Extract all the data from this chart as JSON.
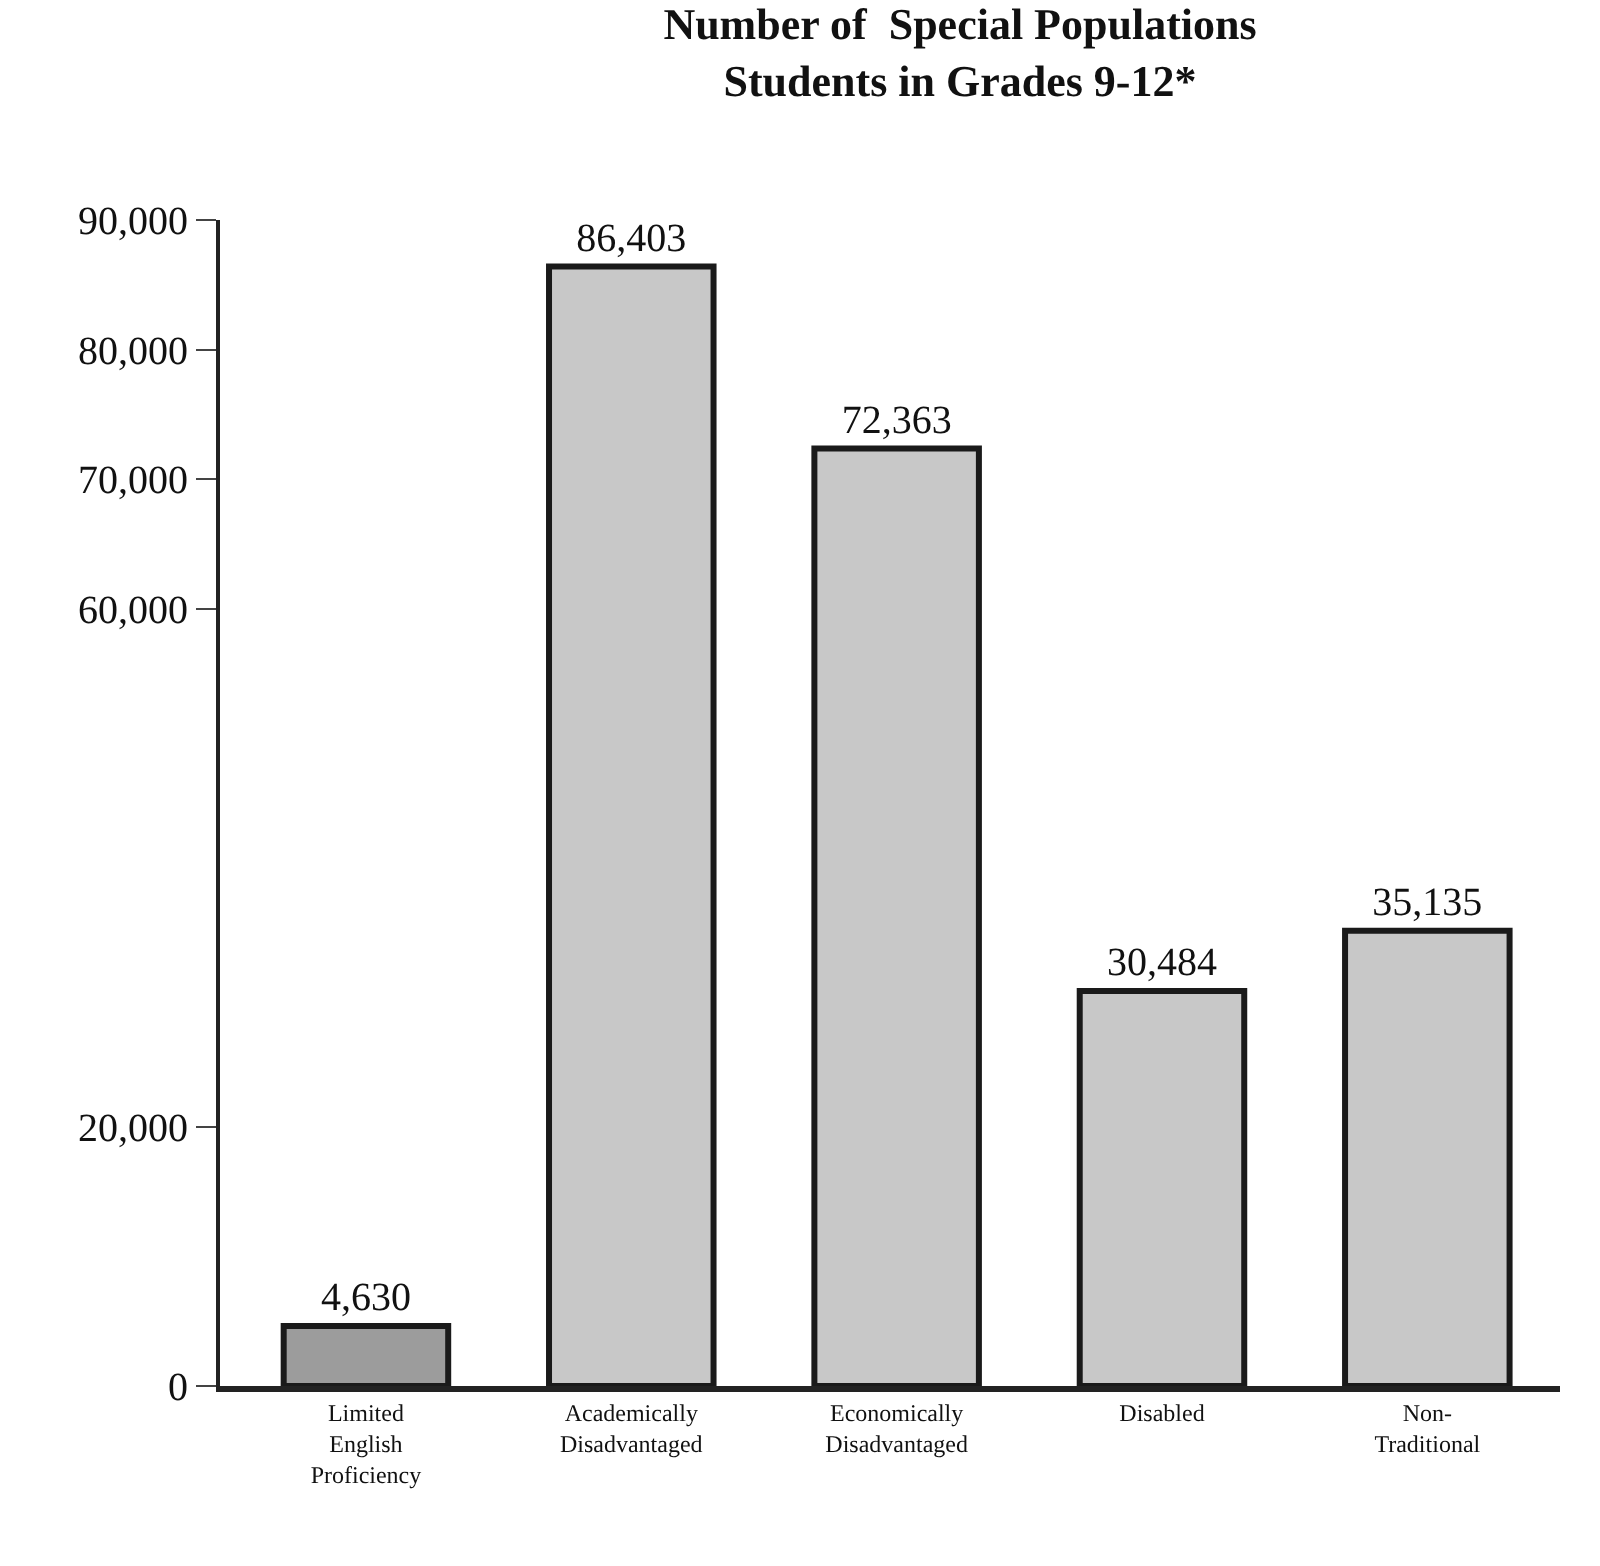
{
  "chart_data": {
    "type": "bar",
    "title": "Number of  Special Populations\nStudents in Grades 9-12*",
    "categories": [
      "Limited\nEnglish\nProficiency",
      "Academically\nDisadvantaged",
      "Economically\nDisadvantaged",
      "Disabled",
      "Non-\nTraditional"
    ],
    "values": [
      4630,
      86403,
      72363,
      30484,
      35135
    ],
    "colors": [
      "#9c9c9c",
      "#c8c8c8",
      "#c8c8c8",
      "#c8c8c8",
      "#c8c8c8"
    ],
    "ylim": [
      0,
      90000
    ],
    "yticks": [
      {
        "value": 0,
        "label": "0"
      },
      {
        "value": 20000,
        "label": "20,000"
      },
      {
        "value": 60000,
        "label": "60,000"
      },
      {
        "value": 70000,
        "label": "70,000"
      },
      {
        "value": 80000,
        "label": "80,000"
      },
      {
        "value": 90000,
        "label": "90,000"
      }
    ],
    "value_labels": [
      "4,630",
      "86,403",
      "72,363",
      "30,484",
      "35,135"
    ],
    "legend": false
  }
}
